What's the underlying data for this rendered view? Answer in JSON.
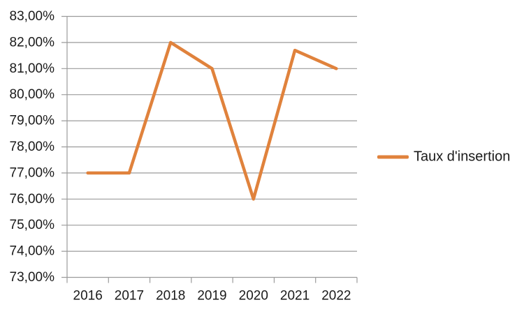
{
  "chart_data": {
    "type": "line",
    "title": "",
    "xlabel": "",
    "ylabel": "",
    "categories": [
      "2016",
      "2017",
      "2018",
      "2019",
      "2020",
      "2021",
      "2022"
    ],
    "series": [
      {
        "name": "Taux d'insertion",
        "values": [
          77.0,
          77.0,
          82.0,
          81.0,
          76.0,
          81.7,
          81.0
        ]
      }
    ],
    "y_axis": {
      "min": 73,
      "max": 83,
      "step": 1,
      "tick_labels": [
        "83,00%",
        "82,00%",
        "81,00%",
        "80,00%",
        "79,00%",
        "78,00%",
        "77,00%",
        "76,00%",
        "75,00%",
        "74,00%",
        "73,00%"
      ]
    },
    "grid": "horizontal",
    "legend_position": "right",
    "colors": {
      "line": "#E0823C",
      "grid": "#9B9B9B",
      "axis": "#9B9B9B",
      "text": "#1A1A1A",
      "background": "#FFFFFF"
    }
  },
  "legend": {
    "label": "Taux d'insertion"
  }
}
